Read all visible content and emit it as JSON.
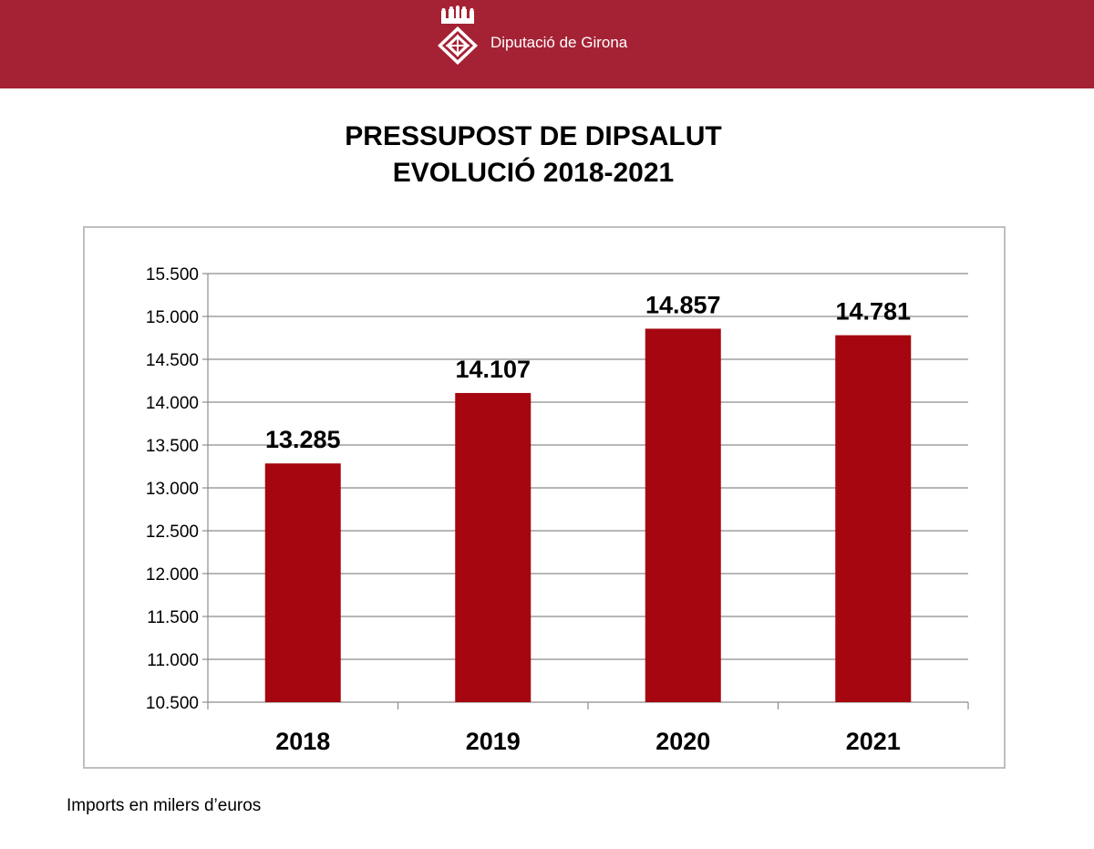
{
  "header": {
    "org_name": "Diputació de Girona",
    "background_color": "#a52235",
    "logo_icon": "girona-crest-icon"
  },
  "title": {
    "line1": "PRESSUPOST DE DIPSALUT",
    "line2": "EVOLUCIÓ 2018-2021"
  },
  "footnote": "Imports en milers d’euros",
  "chart_data": {
    "type": "bar",
    "title": "PRESSUPOST DE DIPSALUT EVOLUCIÓ 2018-2021",
    "categories": [
      "2018",
      "2019",
      "2020",
      "2021"
    ],
    "values": [
      13285,
      14107,
      14857,
      14781
    ],
    "data_labels": [
      "13.285",
      "14.107",
      "14.857",
      "14.781"
    ],
    "yticks": [
      10500,
      11000,
      11500,
      12000,
      12500,
      13000,
      13500,
      14000,
      14500,
      15000,
      15500
    ],
    "ytick_labels": [
      "10.500",
      "11.000",
      "11.500",
      "12.000",
      "12.500",
      "13.000",
      "13.500",
      "14.000",
      "14.500",
      "15.000",
      "15.500"
    ],
    "ylim": [
      10500,
      15500
    ],
    "xlabel": "",
    "ylabel": "",
    "grid": true,
    "legend": "none",
    "bar_color": "#a5060f",
    "grid_color": "#8c8c8c"
  }
}
